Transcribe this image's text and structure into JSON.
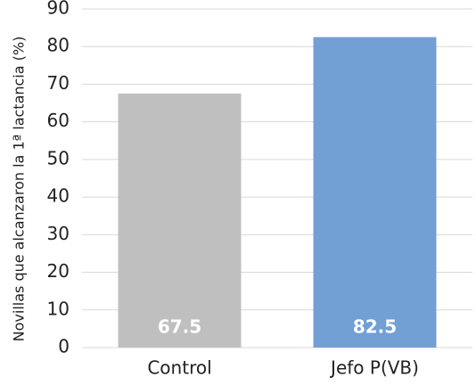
{
  "chart_data": {
    "type": "bar",
    "y_label": "Novillas que alcanzaron la 1ª lactancia (%)",
    "categories": [
      "Control",
      "Jefo P(VB)"
    ],
    "values": [
      67.5,
      82.5
    ],
    "colors": [
      "#bfbfbf",
      "#729fd4"
    ],
    "ylim": [
      0,
      90
    ],
    "yticks": [
      0,
      10,
      20,
      30,
      40,
      50,
      60,
      70,
      80,
      90
    ],
    "grid": true
  }
}
